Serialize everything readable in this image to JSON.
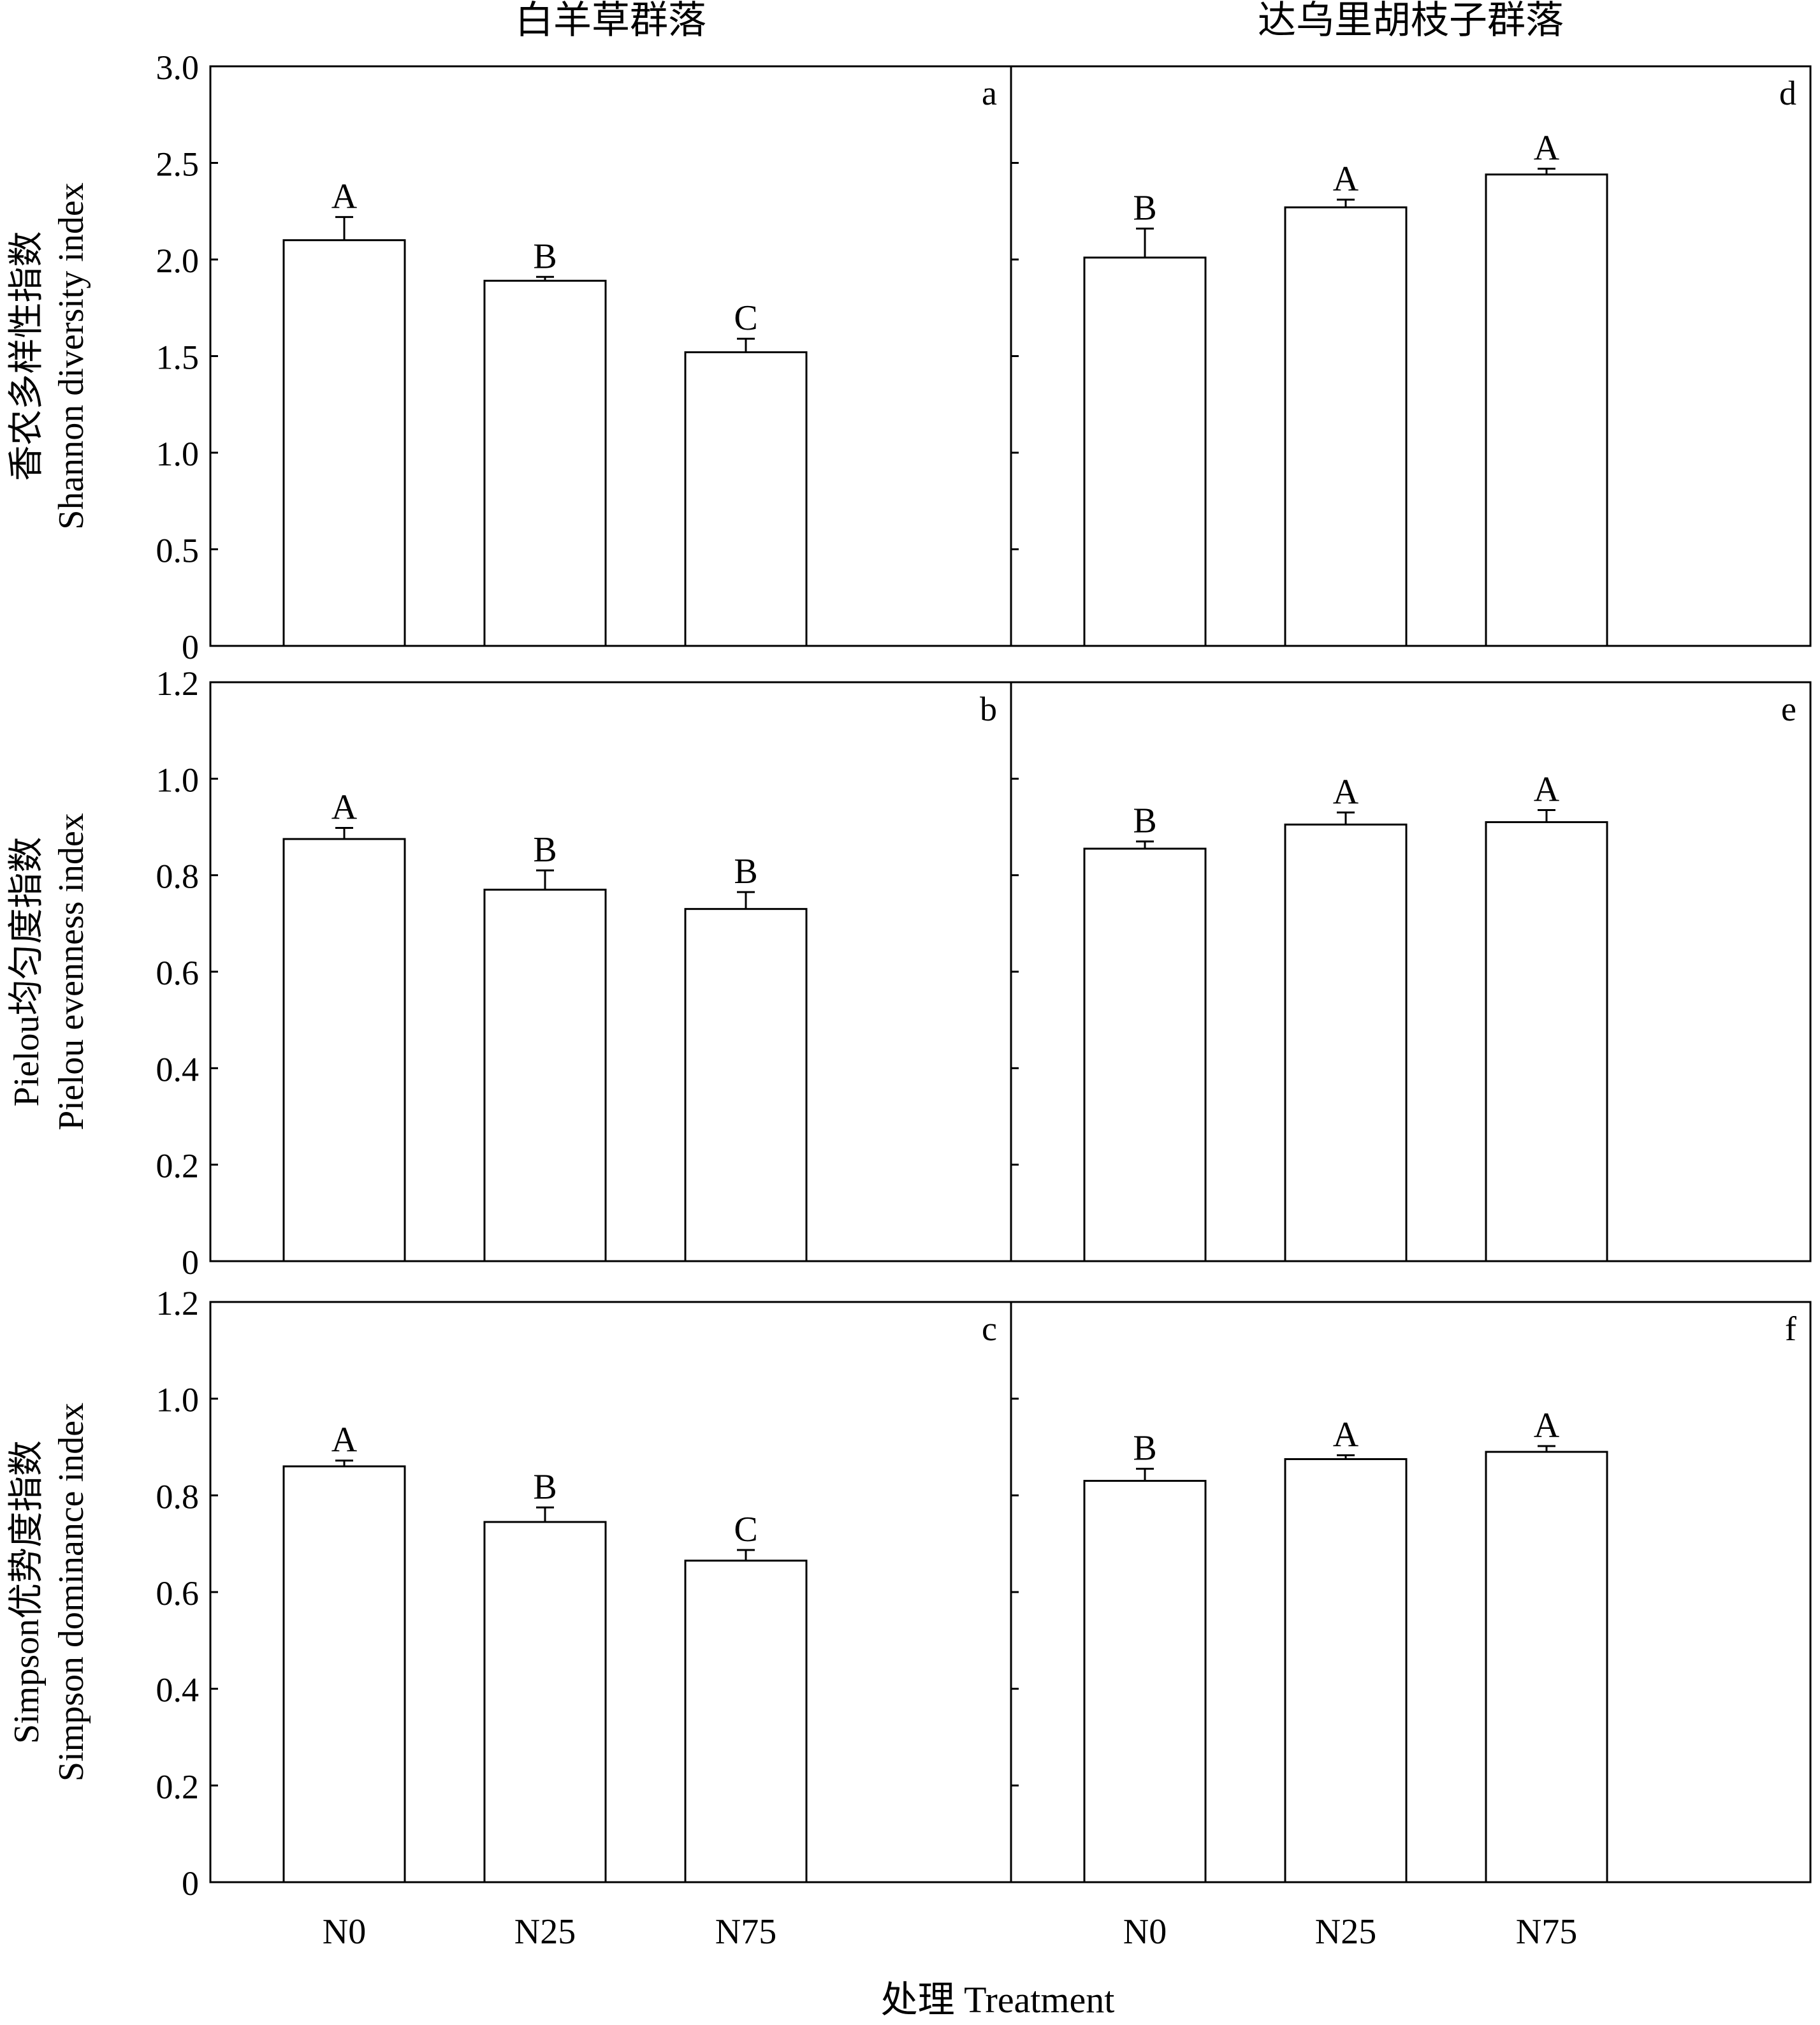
{
  "chart_data": {
    "type": "bar",
    "categories": [
      "N0",
      "N25",
      "N75"
    ],
    "xlabel": "处理 Treatment",
    "columns": [
      "白羊草群落",
      "达乌里胡枝子群落"
    ],
    "rows": [
      {
        "ylabel_cn": "香农多样性指数",
        "ylabel_en": "Shannon diversity index",
        "ylim": [
          0,
          3.0
        ],
        "ticks": [
          "0",
          "0.5",
          "1.0",
          "1.5",
          "2.0",
          "2.5",
          "3.0"
        ],
        "tick_values": [
          0,
          0.5,
          1.0,
          1.5,
          2.0,
          2.5,
          3.0
        ]
      },
      {
        "ylabel_cn": "Pielou均匀度指数",
        "ylabel_en": "Pielou evenness index",
        "ylim": [
          0,
          1.2
        ],
        "ticks": [
          "0",
          "0.2",
          "0.4",
          "0.6",
          "0.8",
          "1.0",
          "1.2"
        ],
        "tick_values": [
          0,
          0.2,
          0.4,
          0.6,
          0.8,
          1.0,
          1.2
        ]
      },
      {
        "ylabel_cn": "Simpson优势度指数",
        "ylabel_en": "Simpson dominance index",
        "ylim": [
          0,
          1.2
        ],
        "ticks": [
          "0",
          "0.2",
          "0.4",
          "0.6",
          "0.8",
          "1.0",
          "1.2"
        ],
        "tick_values": [
          0,
          0.2,
          0.4,
          0.6,
          0.8,
          1.0,
          1.2
        ]
      }
    ],
    "panels": [
      {
        "label": "a",
        "row": 0,
        "col": 0,
        "values": [
          2.1,
          1.89,
          1.52
        ],
        "errors": [
          0.12,
          0.02,
          0.07
        ],
        "letters": [
          "A",
          "B",
          "C"
        ]
      },
      {
        "label": "d",
        "row": 0,
        "col": 1,
        "values": [
          2.01,
          2.27,
          2.44
        ],
        "errors": [
          0.15,
          0.04,
          0.03
        ],
        "letters": [
          "B",
          "A",
          "A"
        ]
      },
      {
        "label": "b",
        "row": 1,
        "col": 0,
        "values": [
          0.875,
          0.77,
          0.73
        ],
        "errors": [
          0.023,
          0.04,
          0.035
        ],
        "letters": [
          "A",
          "B",
          "B"
        ]
      },
      {
        "label": "e",
        "row": 1,
        "col": 1,
        "values": [
          0.855,
          0.905,
          0.91
        ],
        "errors": [
          0.015,
          0.025,
          0.025
        ],
        "letters": [
          "B",
          "A",
          "A"
        ]
      },
      {
        "label": "c",
        "row": 2,
        "col": 0,
        "values": [
          0.86,
          0.745,
          0.665
        ],
        "errors": [
          0.012,
          0.03,
          0.022
        ],
        "letters": [
          "A",
          "B",
          "C"
        ]
      },
      {
        "label": "f",
        "row": 2,
        "col": 1,
        "values": [
          0.83,
          0.875,
          0.89
        ],
        "errors": [
          0.025,
          0.008,
          0.012
        ],
        "letters": [
          "B",
          "A",
          "A"
        ]
      }
    ]
  }
}
